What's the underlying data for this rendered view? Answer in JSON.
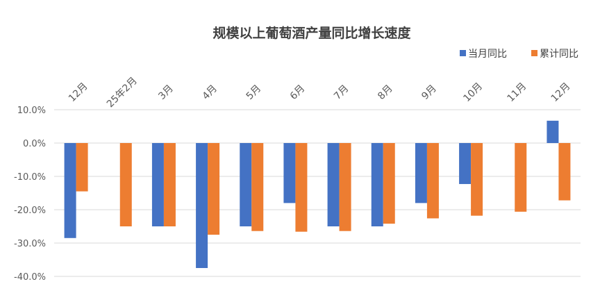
{
  "chart_data": {
    "type": "bar",
    "title": "规模以上葡萄酒产量同比增长速度",
    "categories": [
      "12月",
      "25年2月",
      "3月",
      "4月",
      "5月",
      "6月",
      "7月",
      "8月",
      "9月",
      "10月",
      "11月",
      "12月"
    ],
    "series": [
      {
        "name": "当月同比",
        "color": "#4472C4",
        "values": [
          -28.5,
          null,
          -25.0,
          -37.5,
          -25.0,
          -18.0,
          -25.0,
          -25.0,
          -18.0,
          -12.3,
          null,
          6.7
        ]
      },
      {
        "name": "累计同比",
        "color": "#ED7D31",
        "values": [
          -14.5,
          -25.0,
          -25.0,
          -27.5,
          -26.4,
          -26.6,
          -26.4,
          -24.2,
          -22.6,
          -21.8,
          -20.6,
          -17.2
        ]
      }
    ],
    "ylim": [
      -40,
      10
    ],
    "yticks": [
      10,
      0,
      -10,
      -20,
      -30,
      -40
    ],
    "ytick_labels": [
      "10.0%",
      "0.0%",
      "-10.0%",
      "-20.0%",
      "-30.0%",
      "-40.0%"
    ],
    "grid": true,
    "legend": "top-right"
  }
}
